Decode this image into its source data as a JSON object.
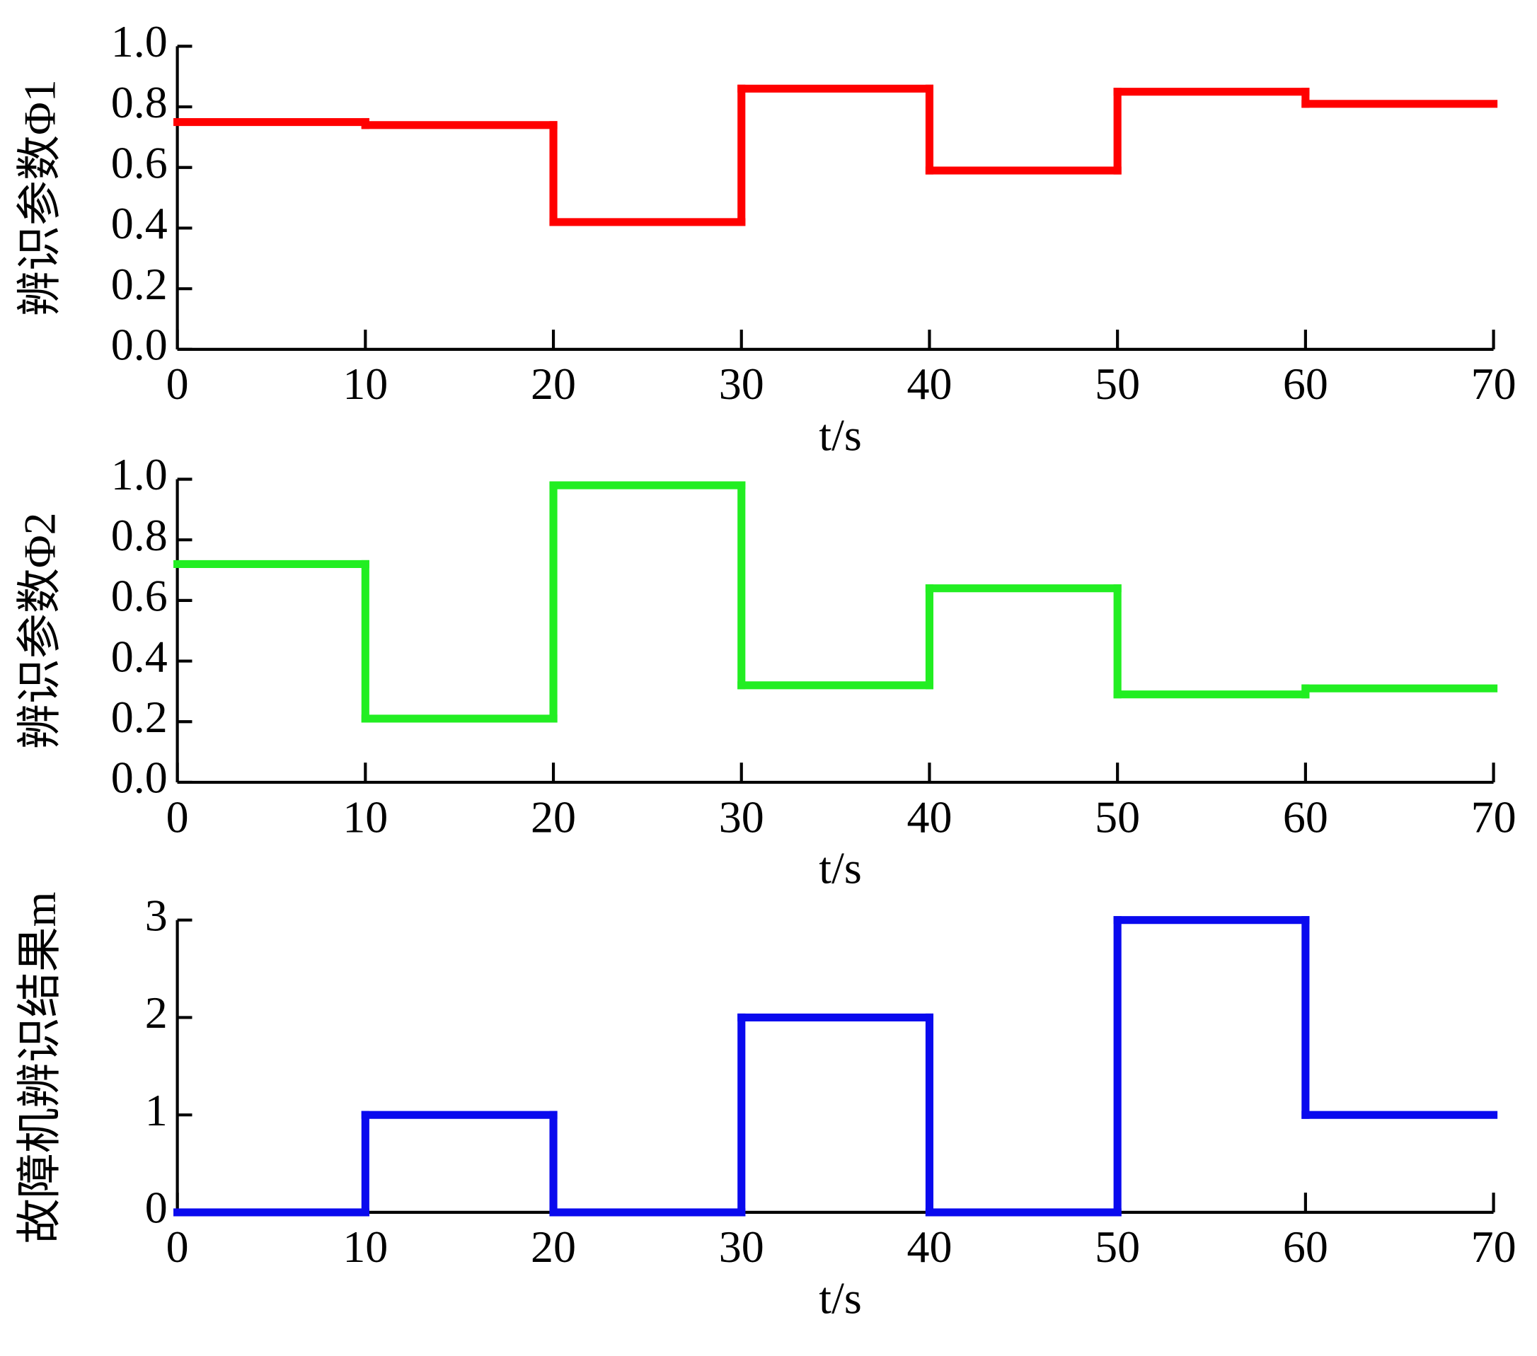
{
  "chart_data": [
    {
      "type": "step",
      "ylabel": "辨识参数Φ1",
      "xlabel": "t/s",
      "x": [
        0,
        10,
        20,
        30,
        40,
        50,
        60
      ],
      "values": [
        0.75,
        0.74,
        0.42,
        0.86,
        0.59,
        0.85,
        0.81
      ],
      "color": "#ff0000",
      "xlim": [
        0,
        70
      ],
      "xticks": [
        0,
        10,
        20,
        30,
        40,
        50,
        60,
        70
      ],
      "ylim": [
        0,
        1
      ],
      "yticks": [
        {
          "value": 0,
          "label": "0.0"
        },
        0.2,
        0.4,
        0.6,
        0.8,
        {
          "value": 1,
          "label": "1.0"
        }
      ]
    },
    {
      "type": "step",
      "ylabel": "辨识参数Φ2",
      "xlabel": "t/s",
      "x": [
        0,
        10,
        20,
        30,
        40,
        50,
        60
      ],
      "values": [
        0.72,
        0.21,
        0.98,
        0.32,
        0.64,
        0.29,
        0.31
      ],
      "color": "#22ee22",
      "xlim": [
        0,
        70
      ],
      "xticks": [
        0,
        10,
        20,
        30,
        40,
        50,
        60,
        70
      ],
      "ylim": [
        0,
        1
      ],
      "yticks": [
        {
          "value": 0,
          "label": "0.0"
        },
        0.2,
        0.4,
        0.6,
        0.8,
        {
          "value": 1,
          "label": "1.0"
        }
      ]
    },
    {
      "type": "step",
      "ylabel": "故障机辨识结果m",
      "xlabel": "t/s",
      "x": [
        0,
        10,
        20,
        30,
        40,
        50,
        60
      ],
      "values": [
        0,
        1,
        0,
        2,
        0,
        3,
        1
      ],
      "color": "#0a0aee",
      "xlim": [
        0,
        70
      ],
      "xticks": [
        0,
        10,
        20,
        30,
        40,
        50,
        60,
        70
      ],
      "ylim": [
        0,
        3
      ],
      "yticks": [
        0,
        1,
        2,
        3
      ]
    }
  ]
}
